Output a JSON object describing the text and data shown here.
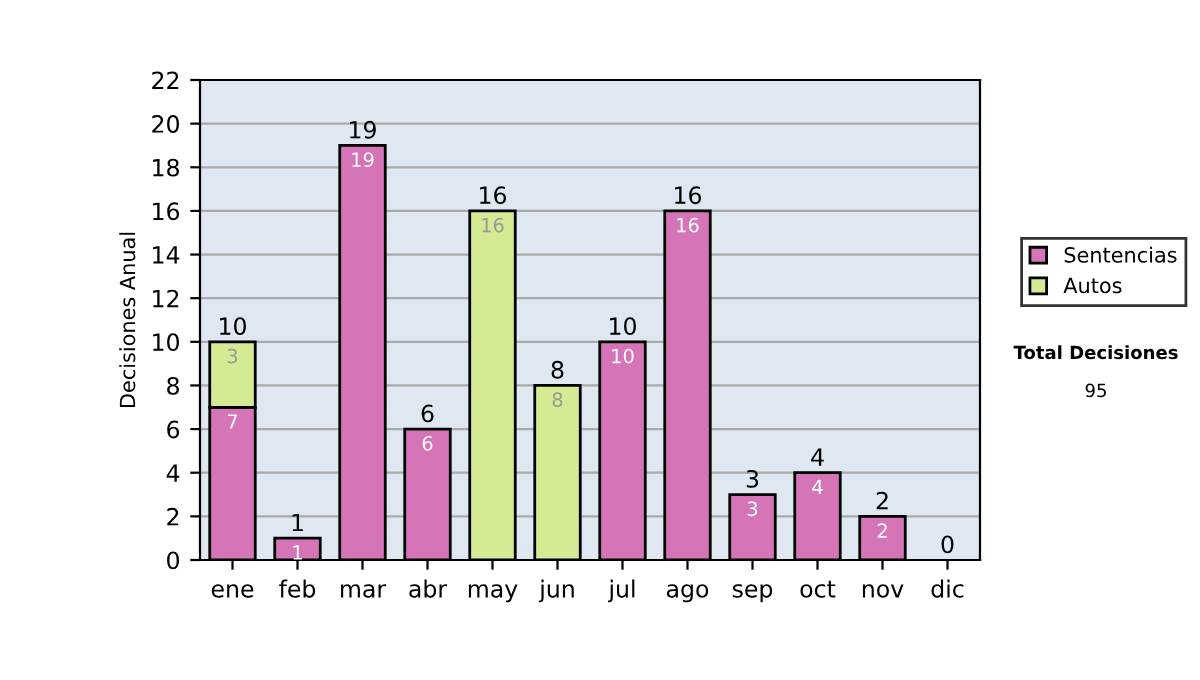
{
  "chart_data": {
    "type": "bar",
    "stacked": true,
    "ylabel": "Decisiones Anual",
    "categories": [
      "ene",
      "feb",
      "mar",
      "abr",
      "may",
      "jun",
      "jul",
      "ago",
      "sep",
      "oct",
      "nov",
      "dic"
    ],
    "series": [
      {
        "name": "Sentencias",
        "color": "#d575b8",
        "values": [
          7,
          1,
          19,
          6,
          0,
          0,
          10,
          16,
          3,
          4,
          2,
          0
        ],
        "value_labels": [
          "7",
          "1",
          "19",
          "6",
          null,
          null,
          "10",
          "16",
          "3",
          "4",
          "2",
          null
        ]
      },
      {
        "name": "Autos",
        "color": "#d4eb94",
        "values": [
          3,
          0,
          0,
          0,
          16,
          8,
          0,
          0,
          0,
          0,
          0,
          0
        ],
        "value_labels": [
          "3",
          null,
          null,
          null,
          "16",
          "8",
          null,
          null,
          null,
          null,
          null,
          null
        ]
      }
    ],
    "totals": [
      "10",
      "1",
      "19",
      "6",
      "16",
      "8",
      "10",
      "16",
      "3",
      "4",
      "2",
      "0"
    ],
    "ylim": [
      0,
      22
    ],
    "yticks": [
      0,
      2,
      4,
      6,
      8,
      10,
      12,
      14,
      16,
      18,
      20,
      22
    ],
    "grid": "y",
    "legend": "right",
    "annotations": [
      "Total Decisiones",
      "95"
    ]
  }
}
